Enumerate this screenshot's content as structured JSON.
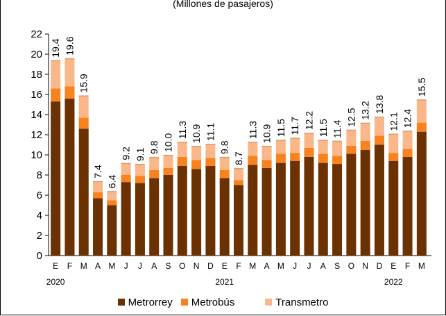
{
  "subtitle": "(Millones de pasajeros)",
  "chart_data": {
    "type": "bar",
    "stacked": true,
    "subtitle": "(Millones de pasajeros)",
    "categories": [
      "E",
      "F",
      "M",
      "A",
      "M",
      "J",
      "J",
      "A",
      "S",
      "O",
      "N",
      "D",
      "E",
      "F",
      "M",
      "A",
      "M",
      "J",
      "J",
      "A",
      "S",
      "O",
      "N",
      "D",
      "E",
      "F",
      "M"
    ],
    "year_labels": [
      {
        "label": "2020",
        "index": 0
      },
      {
        "label": "2021",
        "index": 12
      },
      {
        "label": "2022",
        "index": 24
      }
    ],
    "ylim": [
      0,
      22
    ],
    "yticks": [
      0,
      2,
      4,
      6,
      8,
      10,
      12,
      14,
      16,
      18,
      20,
      22
    ],
    "grid": false,
    "legend_position": "bottom",
    "series": [
      {
        "name": "Metrorrey",
        "color": "#6B3100",
        "values": [
          15.3,
          15.6,
          12.6,
          5.7,
          5.0,
          7.3,
          7.2,
          7.7,
          8.0,
          8.9,
          8.6,
          8.9,
          7.7,
          7.0,
          9.0,
          8.7,
          9.2,
          9.4,
          9.8,
          9.2,
          9.1,
          10.1,
          10.5,
          11.0,
          9.4,
          9.8,
          12.3
        ]
      },
      {
        "name": "Metrobús",
        "color": "#F7821E",
        "values": [
          1.3,
          1.2,
          1.1,
          0.6,
          0.5,
          0.7,
          0.7,
          0.8,
          0.7,
          0.9,
          0.9,
          0.8,
          0.8,
          0.5,
          0.9,
          0.8,
          0.9,
          0.8,
          0.9,
          0.9,
          0.8,
          0.8,
          0.9,
          0.9,
          0.8,
          0.8,
          0.9
        ]
      },
      {
        "name": "Transmetro",
        "color": "#FAB88A",
        "values": [
          2.8,
          2.8,
          2.2,
          1.1,
          0.9,
          1.2,
          1.2,
          1.3,
          1.3,
          1.5,
          1.4,
          1.4,
          1.3,
          1.2,
          1.4,
          1.4,
          1.4,
          1.5,
          1.5,
          1.4,
          1.5,
          1.6,
          1.8,
          1.9,
          1.9,
          1.8,
          2.3
        ]
      }
    ],
    "totals": [
      "19.4",
      "19.6",
      "15.9",
      "7.4",
      "6.4",
      "9.2",
      "9.1",
      "9.8",
      "10.0",
      "11.3",
      "10.9",
      "11.1",
      "9.8",
      "8.7",
      "11.3",
      "10.9",
      "11.5",
      "11.7",
      "12.2",
      "11.5",
      "11.4",
      "12.5",
      "13.2",
      "13.8",
      "12.1",
      "12.4",
      "15.5"
    ]
  }
}
